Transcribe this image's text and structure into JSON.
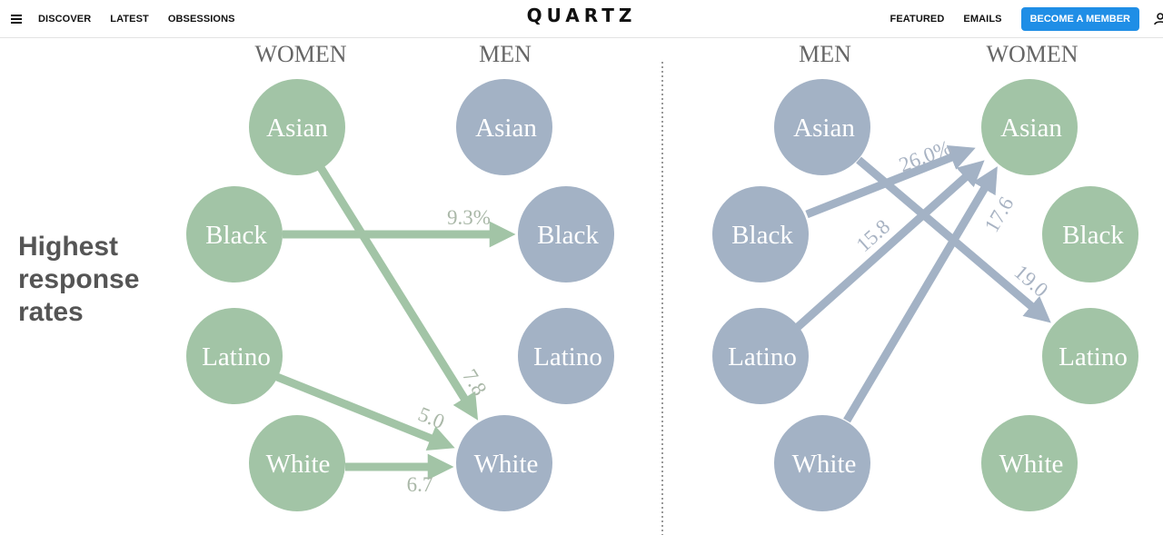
{
  "nav": {
    "menu_icon": "hamburger-menu-icon",
    "links_left": [
      "DISCOVER",
      "LATEST",
      "OBSESSIONS"
    ],
    "logo": "QUARTZ",
    "links_right": [
      "FEATURED",
      "EMAILS"
    ],
    "member_button": "BECOME A MEMBER",
    "user_icon": "user-icon"
  },
  "figure": {
    "side_label": [
      "Highest",
      "response",
      "rates"
    ],
    "colors": {
      "women": "#a2c4a6",
      "men": "#a3b2c5",
      "text": "#ffffff",
      "side_label": "#555555"
    },
    "left_panel": {
      "headers": [
        "WOMEN",
        "MEN"
      ],
      "women": [
        "Asian",
        "Black",
        "Latino",
        "White"
      ],
      "men": [
        "Asian",
        "Black",
        "Latino",
        "White"
      ],
      "arrows": [
        {
          "from": "Black",
          "to": "Black",
          "label": "9.3%"
        },
        {
          "from": "Asian",
          "to": "White",
          "label": "7.8"
        },
        {
          "from": "Latino",
          "to": "White",
          "label": "5.0"
        },
        {
          "from": "White",
          "to": "White",
          "label": "6.7"
        }
      ]
    },
    "right_panel": {
      "headers": [
        "MEN",
        "WOMEN"
      ],
      "men": [
        "Asian",
        "Black",
        "Latino",
        "White"
      ],
      "women": [
        "Asian",
        "Black",
        "Latino",
        "White"
      ],
      "arrows": [
        {
          "from": "Black",
          "to": "Asian",
          "label": "26.0%"
        },
        {
          "from": "Latino",
          "to": "Asian",
          "label": "15.8"
        },
        {
          "from": "White",
          "to": "Asian",
          "label": "17.6"
        },
        {
          "from": "Asian",
          "to": "Latino",
          "label": "19.0"
        }
      ]
    }
  }
}
